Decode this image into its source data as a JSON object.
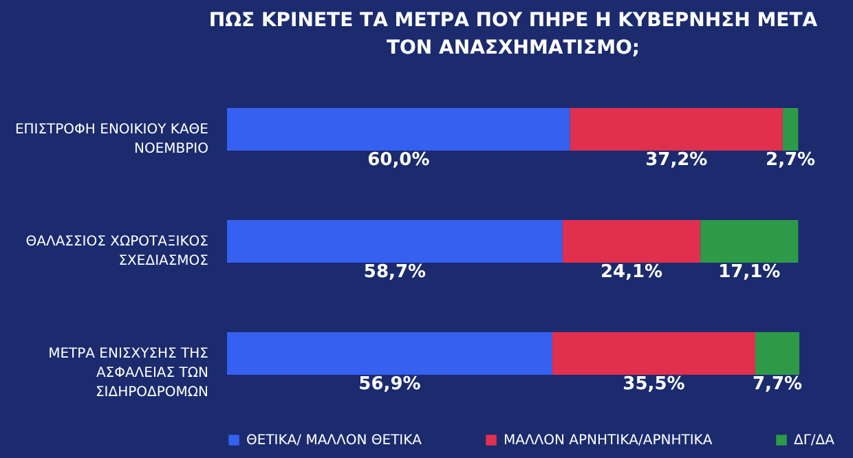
{
  "chart_data": {
    "type": "bar",
    "orientation": "horizontal",
    "stacked": true,
    "title": "ΠΩΣ ΚΡΙΝΕΤΕ ΤΑ ΜΕΤΡΑ ΠΟΥ ΠΗΡΕ Η ΚΥΒΕΡΝΗΣΗ ΜΕΤΑ ΤΟΝ ΑΝΑΣΧΗΜΑΤΙΣΜΟ;",
    "categories": [
      "ΕΠΙΣΤΡΟΦΗ ΕΝΟΙΚΙΟΥ ΚΑΘΕ ΝΟΕΜΒΡΙΟ",
      "ΘΑΛΑΣΣΙΟΣ ΧΩΡΟΤΑΞΙΚΟΣ ΣΧΕΔΙΑΣΜΟΣ",
      "ΜΕΤΡΑ ΕΝΙΣΧΥΣΗΣ ΤΗΣ ΑΣΦΑΛΕΙΑΣ ΤΩΝ ΣΙΔΗΡΟΔΡΟΜΩΝ"
    ],
    "series": [
      {
        "name": "ΘΕΤΙΚΑ/ ΜΑΛΛΟΝ ΘΕΤΙΚΑ",
        "color": "#3560f0",
        "values": [
          60.0,
          58.7,
          56.9
        ],
        "value_labels": [
          "60,0%",
          "58,7%",
          "56,9%"
        ]
      },
      {
        "name": "ΜΑΛΛΟΝ ΑΡΝΗΤΙΚΑ/ΑΡΝΗΤΙΚΑ",
        "color": "#e0304e",
        "values": [
          37.2,
          24.1,
          35.5
        ],
        "value_labels": [
          "37,2%",
          "24,1%",
          "35,5%"
        ]
      },
      {
        "name": "ΔΓ/ΔΑ",
        "color": "#2e9a48",
        "values": [
          2.7,
          17.1,
          7.7
        ],
        "value_labels": [
          "2,7%",
          "17,1%",
          "7,7%"
        ]
      }
    ],
    "legend": "bottom",
    "tick_labels": "y"
  }
}
